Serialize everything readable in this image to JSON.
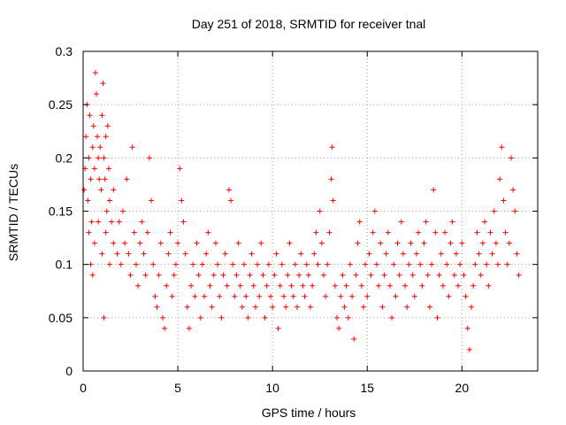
{
  "chart_data": {
    "type": "scatter",
    "title": "Day 251 of 2018, SRMTID for receiver tnal",
    "xlabel": "GPS time / hours",
    "ylabel": "SRMTID / TECUs",
    "xlim": [
      0,
      24
    ],
    "ylim": [
      0,
      0.3
    ],
    "xticks": [
      0,
      5,
      10,
      15,
      20
    ],
    "xtick_labels": [
      "0",
      "5",
      "10",
      "15",
      "20"
    ],
    "yticks": [
      0,
      0.05,
      0.1,
      0.15,
      0.2,
      0.25,
      0.3
    ],
    "ytick_labels": [
      "0",
      "0.05",
      "0.1",
      "0.15",
      "0.2",
      "0.25",
      "0.3"
    ],
    "grid": true,
    "marker": "+",
    "color": "#ff0000",
    "series": [
      {
        "name": "SRMTID",
        "points": [
          [
            0.05,
            0.17
          ],
          [
            0.1,
            0.19
          ],
          [
            0.15,
            0.22
          ],
          [
            0.2,
            0.25
          ],
          [
            0.25,
            0.16
          ],
          [
            0.3,
            0.2
          ],
          [
            0.35,
            0.24
          ],
          [
            0.4,
            0.18
          ],
          [
            0.45,
            0.14
          ],
          [
            0.5,
            0.21
          ],
          [
            0.55,
            0.23
          ],
          [
            0.6,
            0.19
          ],
          [
            0.65,
            0.28
          ],
          [
            0.7,
            0.26
          ],
          [
            0.75,
            0.22
          ],
          [
            0.8,
            0.2
          ],
          [
            0.85,
            0.18
          ],
          [
            0.9,
            0.21
          ],
          [
            0.95,
            0.17
          ],
          [
            1.0,
            0.24
          ],
          [
            1.05,
            0.27
          ],
          [
            1.1,
            0.2
          ],
          [
            1.15,
            0.18
          ],
          [
            1.2,
            0.22
          ],
          [
            1.25,
            0.15
          ],
          [
            1.3,
            0.23
          ],
          [
            1.35,
            0.19
          ],
          [
            1.4,
            0.16
          ],
          [
            1.5,
            0.14
          ],
          [
            1.6,
            0.17
          ],
          [
            0.3,
            0.13
          ],
          [
            0.4,
            0.1
          ],
          [
            0.5,
            0.09
          ],
          [
            0.6,
            0.12
          ],
          [
            0.8,
            0.14
          ],
          [
            1.0,
            0.11
          ],
          [
            1.1,
            0.05
          ],
          [
            1.2,
            0.13
          ],
          [
            1.4,
            0.1
          ],
          [
            1.6,
            0.12
          ],
          [
            1.8,
            0.11
          ],
          [
            1.9,
            0.14
          ],
          [
            2.0,
            0.1
          ],
          [
            2.1,
            0.15
          ],
          [
            2.2,
            0.12
          ],
          [
            2.3,
            0.18
          ],
          [
            2.4,
            0.11
          ],
          [
            2.5,
            0.09
          ],
          [
            2.6,
            0.21
          ],
          [
            2.7,
            0.13
          ],
          [
            2.8,
            0.1
          ],
          [
            2.9,
            0.08
          ],
          [
            3.0,
            0.12
          ],
          [
            3.1,
            0.14
          ],
          [
            3.2,
            0.11
          ],
          [
            3.3,
            0.09
          ],
          [
            3.4,
            0.13
          ],
          [
            3.5,
            0.2
          ],
          [
            3.6,
            0.16
          ],
          [
            3.7,
            0.1
          ],
          [
            3.8,
            0.07
          ],
          [
            3.9,
            0.06
          ],
          [
            4.0,
            0.09
          ],
          [
            4.1,
            0.12
          ],
          [
            4.2,
            0.05
          ],
          [
            4.3,
            0.04
          ],
          [
            4.4,
            0.08
          ],
          [
            4.5,
            0.11
          ],
          [
            4.6,
            0.13
          ],
          [
            4.7,
            0.07
          ],
          [
            4.8,
            0.09
          ],
          [
            4.9,
            0.1
          ],
          [
            5.0,
            0.12
          ],
          [
            5.1,
            0.19
          ],
          [
            5.2,
            0.16
          ],
          [
            5.3,
            0.14
          ],
          [
            5.4,
            0.11
          ],
          [
            5.5,
            0.06
          ],
          [
            5.6,
            0.04
          ],
          [
            5.7,
            0.08
          ],
          [
            5.8,
            0.1
          ],
          [
            5.9,
            0.07
          ],
          [
            6.0,
            0.12
          ],
          [
            6.1,
            0.09
          ],
          [
            6.2,
            0.05
          ],
          [
            6.3,
            0.1
          ],
          [
            6.4,
            0.07
          ],
          [
            6.5,
            0.11
          ],
          [
            6.6,
            0.13
          ],
          [
            6.7,
            0.08
          ],
          [
            6.8,
            0.06
          ],
          [
            6.9,
            0.09
          ],
          [
            7.0,
            0.12
          ],
          [
            7.1,
            0.1
          ],
          [
            7.2,
            0.07
          ],
          [
            7.3,
            0.05
          ],
          [
            7.4,
            0.09
          ],
          [
            7.5,
            0.11
          ],
          [
            7.6,
            0.08
          ],
          [
            7.7,
            0.17
          ],
          [
            7.8,
            0.16
          ],
          [
            7.9,
            0.1
          ],
          [
            8.0,
            0.07
          ],
          [
            8.1,
            0.09
          ],
          [
            8.2,
            0.12
          ],
          [
            8.3,
            0.08
          ],
          [
            8.4,
            0.06
          ],
          [
            8.5,
            0.1
          ],
          [
            8.6,
            0.07
          ],
          [
            8.7,
            0.05
          ],
          [
            8.8,
            0.09
          ],
          [
            8.9,
            0.11
          ],
          [
            9.0,
            0.08
          ],
          [
            9.1,
            0.06
          ],
          [
            9.2,
            0.1
          ],
          [
            9.3,
            0.07
          ],
          [
            9.4,
            0.12
          ],
          [
            9.5,
            0.09
          ],
          [
            9.6,
            0.05
          ],
          [
            9.7,
            0.08
          ],
          [
            9.8,
            0.1
          ],
          [
            9.9,
            0.07
          ],
          [
            10.0,
            0.06
          ],
          [
            10.1,
            0.09
          ],
          [
            10.2,
            0.11
          ],
          [
            10.3,
            0.04
          ],
          [
            10.4,
            0.08
          ],
          [
            10.5,
            0.1
          ],
          [
            10.6,
            0.07
          ],
          [
            10.7,
            0.06
          ],
          [
            10.8,
            0.09
          ],
          [
            10.9,
            0.12
          ],
          [
            11.0,
            0.08
          ],
          [
            11.1,
            0.07
          ],
          [
            11.2,
            0.1
          ],
          [
            11.3,
            0.06
          ],
          [
            11.4,
            0.09
          ],
          [
            11.5,
            0.11
          ],
          [
            11.6,
            0.08
          ],
          [
            11.7,
            0.07
          ],
          [
            11.8,
            0.1
          ],
          [
            11.9,
            0.09
          ],
          [
            12.0,
            0.06
          ],
          [
            12.1,
            0.08
          ],
          [
            12.2,
            0.11
          ],
          [
            12.3,
            0.13
          ],
          [
            12.4,
            0.1
          ],
          [
            12.5,
            0.15
          ],
          [
            12.6,
            0.12
          ],
          [
            12.7,
            0.09
          ],
          [
            12.8,
            0.07
          ],
          [
            12.9,
            0.1
          ],
          [
            13.0,
            0.13
          ],
          [
            13.1,
            0.18
          ],
          [
            13.15,
            0.21
          ],
          [
            13.2,
            0.16
          ],
          [
            13.3,
            0.08
          ],
          [
            13.4,
            0.05
          ],
          [
            13.5,
            0.04
          ],
          [
            13.6,
            0.07
          ],
          [
            13.7,
            0.09
          ],
          [
            13.8,
            0.06
          ],
          [
            13.9,
            0.08
          ],
          [
            14.0,
            0.05
          ],
          [
            14.1,
            0.1
          ],
          [
            14.2,
            0.07
          ],
          [
            14.3,
            0.03
          ],
          [
            14.4,
            0.09
          ],
          [
            14.5,
            0.12
          ],
          [
            14.6,
            0.14
          ],
          [
            14.7,
            0.08
          ],
          [
            14.8,
            0.06
          ],
          [
            14.9,
            0.1
          ],
          [
            15.0,
            0.07
          ],
          [
            15.1,
            0.11
          ],
          [
            15.2,
            0.09
          ],
          [
            15.3,
            0.13
          ],
          [
            15.4,
            0.15
          ],
          [
            15.5,
            0.1
          ],
          [
            15.6,
            0.08
          ],
          [
            15.7,
            0.12
          ],
          [
            15.8,
            0.06
          ],
          [
            15.9,
            0.09
          ],
          [
            16.0,
            0.11
          ],
          [
            16.1,
            0.13
          ],
          [
            16.2,
            0.08
          ],
          [
            16.3,
            0.05
          ],
          [
            16.4,
            0.1
          ],
          [
            16.5,
            0.07
          ],
          [
            16.6,
            0.12
          ],
          [
            16.7,
            0.09
          ],
          [
            16.8,
            0.14
          ],
          [
            16.9,
            0.11
          ],
          [
            17.0,
            0.08
          ],
          [
            17.1,
            0.06
          ],
          [
            17.2,
            0.1
          ],
          [
            17.3,
            0.12
          ],
          [
            17.4,
            0.09
          ],
          [
            17.5,
            0.07
          ],
          [
            17.6,
            0.11
          ],
          [
            17.7,
            0.13
          ],
          [
            17.8,
            0.1
          ],
          [
            17.9,
            0.08
          ],
          [
            18.0,
            0.12
          ],
          [
            18.1,
            0.14
          ],
          [
            18.2,
            0.09
          ],
          [
            18.3,
            0.06
          ],
          [
            18.4,
            0.1
          ],
          [
            18.5,
            0.17
          ],
          [
            18.6,
            0.13
          ],
          [
            18.7,
            0.05
          ],
          [
            18.8,
            0.09
          ],
          [
            18.9,
            0.11
          ],
          [
            19.0,
            0.08
          ],
          [
            19.1,
            0.13
          ],
          [
            19.2,
            0.1
          ],
          [
            19.3,
            0.07
          ],
          [
            19.4,
            0.12
          ],
          [
            19.5,
            0.14
          ],
          [
            19.6,
            0.09
          ],
          [
            19.7,
            0.11
          ],
          [
            19.8,
            0.08
          ],
          [
            19.9,
            0.1
          ],
          [
            20.0,
            0.12
          ],
          [
            20.1,
            0.09
          ],
          [
            20.2,
            0.07
          ],
          [
            20.3,
            0.04
          ],
          [
            20.4,
            0.02
          ],
          [
            20.5,
            0.06
          ],
          [
            20.6,
            0.08
          ],
          [
            20.7,
            0.1
          ],
          [
            20.8,
            0.13
          ],
          [
            20.9,
            0.11
          ],
          [
            21.0,
            0.09
          ],
          [
            21.1,
            0.12
          ],
          [
            21.2,
            0.14
          ],
          [
            21.3,
            0.1
          ],
          [
            21.4,
            0.08
          ],
          [
            21.5,
            0.13
          ],
          [
            21.6,
            0.11
          ],
          [
            21.7,
            0.15
          ],
          [
            21.8,
            0.12
          ],
          [
            21.9,
            0.1
          ],
          [
            22.0,
            0.18
          ],
          [
            22.1,
            0.21
          ],
          [
            22.2,
            0.16
          ],
          [
            22.3,
            0.13
          ],
          [
            22.4,
            0.1
          ],
          [
            22.5,
            0.12
          ],
          [
            22.6,
            0.2
          ],
          [
            22.7,
            0.17
          ],
          [
            22.8,
            0.15
          ],
          [
            22.9,
            0.11
          ],
          [
            23.0,
            0.09
          ]
        ]
      }
    ]
  }
}
